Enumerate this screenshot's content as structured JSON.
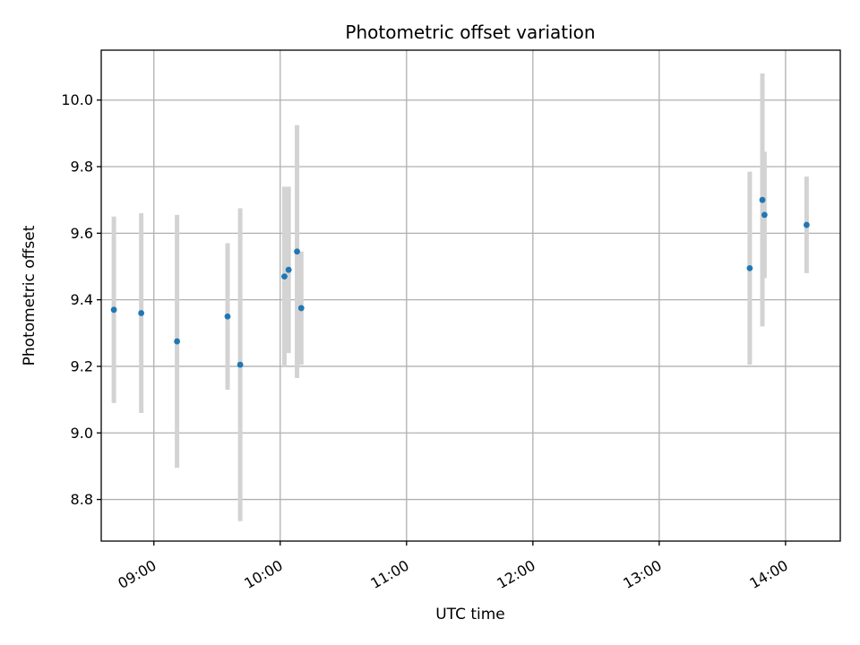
{
  "chart_data": {
    "type": "scatter",
    "title": "Photometric offset variation",
    "xlabel": "UTC time",
    "ylabel": "Photometric offset",
    "xlim": [
      "08:35",
      "14:26"
    ],
    "ylim": [
      8.675,
      10.15
    ],
    "x_ticks": [
      "09:00",
      "10:00",
      "11:00",
      "12:00",
      "13:00",
      "14:00"
    ],
    "y_ticks": [
      8.8,
      9.0,
      9.2,
      9.4,
      9.6,
      9.8,
      10.0
    ],
    "grid": true,
    "colors": {
      "point": "#1f77b4",
      "errorbar": "#d3d3d3"
    },
    "points": [
      {
        "x": "08:41",
        "y": 9.37,
        "err": 0.28
      },
      {
        "x": "08:54",
        "y": 9.36,
        "err": 0.3
      },
      {
        "x": "09:11",
        "y": 9.275,
        "err": 0.38
      },
      {
        "x": "09:35",
        "y": 9.35,
        "err": 0.22
      },
      {
        "x": "09:41",
        "y": 9.205,
        "err": 0.47
      },
      {
        "x": "10:02",
        "y": 9.47,
        "err": 0.27
      },
      {
        "x": "10:04",
        "y": 9.49,
        "err": 0.25
      },
      {
        "x": "10:08",
        "y": 9.545,
        "err": 0.38
      },
      {
        "x": "10:10",
        "y": 9.375,
        "err": 0.17
      },
      {
        "x": "13:43",
        "y": 9.495,
        "err": 0.29
      },
      {
        "x": "13:49",
        "y": 9.7,
        "err": 0.38
      },
      {
        "x": "13:50",
        "y": 9.655,
        "err": 0.19
      },
      {
        "x": "14:10",
        "y": 9.625,
        "err": 0.145
      }
    ]
  }
}
